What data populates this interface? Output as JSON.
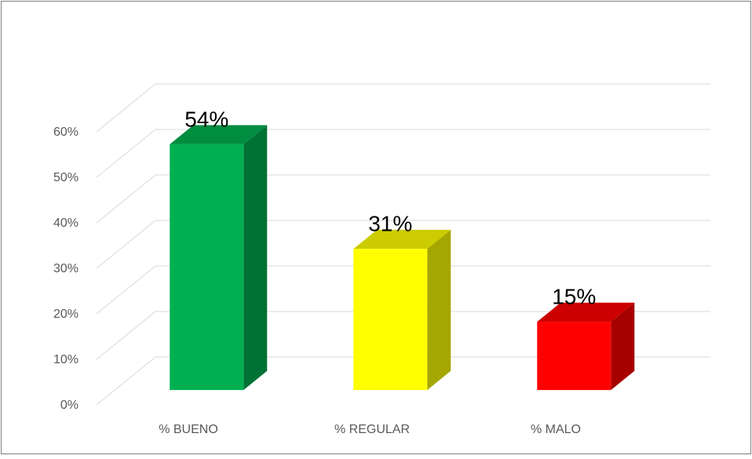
{
  "chart_data": {
    "type": "bar3d",
    "categories": [
      "% BUENO",
      "% REGULAR",
      "% MALO"
    ],
    "values": [
      54,
      31,
      15
    ],
    "value_labels": [
      "54%",
      "31%",
      "15%"
    ],
    "colors": [
      "#00b050",
      "#ffff00",
      "#ff0000"
    ],
    "ylim": [
      0,
      60
    ],
    "yticks": [
      {
        "value": 0,
        "label": "0%"
      },
      {
        "value": 10,
        "label": "10%"
      },
      {
        "value": 20,
        "label": "20%"
      },
      {
        "value": 30,
        "label": "30%"
      },
      {
        "value": 40,
        "label": "40%"
      },
      {
        "value": 50,
        "label": "50%"
      },
      {
        "value": 60,
        "label": "60%"
      }
    ],
    "grid": true
  }
}
